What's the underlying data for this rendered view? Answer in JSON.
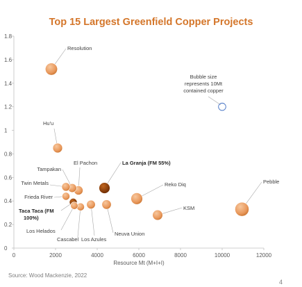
{
  "title": "Top 15 Largest Greenfield Copper Projects",
  "source": "Source: Wood Mackenzie, 2022",
  "page_number": "4",
  "colors": {
    "title": "#d4762a",
    "bubble_light": "#f7c79d",
    "bubble_mid": "#e8975a",
    "bubble_dark_edge": "#c8732e",
    "highlight_light": "#c0651e",
    "highlight_dark": "#6b2a02",
    "legend_circle": "#4472c4"
  },
  "chart_data": {
    "type": "scatter",
    "title": "Top 15 Largest Greenfield Copper Projects",
    "xlabel": "Resource Mt (M+I+I)",
    "ylabel": "",
    "xlim": [
      0,
      12000
    ],
    "ylim": [
      0,
      1.8
    ],
    "xticks": [
      0,
      2000,
      4000,
      6000,
      8000,
      10000,
      12000
    ],
    "yticks": [
      0,
      0.2,
      0.4,
      0.6,
      0.8,
      1,
      1.2,
      1.4,
      1.6,
      1.8
    ],
    "xtick_labels": [
      "0",
      "2000",
      "4000",
      "6000",
      "8000",
      "10000",
      "12000"
    ],
    "ytick_labels": [
      "0",
      "0.2",
      "0.4",
      "0.6",
      "0.8",
      "1",
      "1.2",
      "1.4",
      "1.6",
      "1.8"
    ],
    "grid": false,
    "legend": {
      "text": [
        "Bubble size",
        "represents 10Mt",
        "contained copper"
      ],
      "placement": "top-right"
    },
    "points": [
      {
        "name": "Resolution",
        "label": [
          "Resolution"
        ],
        "x": 1800,
        "y": 1.52,
        "contained_cu_mt": 27,
        "highlight": false
      },
      {
        "name": "Hu'u",
        "label": [
          "Hu'u"
        ],
        "x": 2100,
        "y": 0.85,
        "contained_cu_mt": 17,
        "highlight": false
      },
      {
        "name": "El Pachon",
        "label": [
          "El Pachon"
        ],
        "x": 3100,
        "y": 0.49,
        "contained_cu_mt": 15,
        "highlight": false
      },
      {
        "name": "Tampakan",
        "label": [
          "Tampakan"
        ],
        "x": 2800,
        "y": 0.51,
        "contained_cu_mt": 14,
        "highlight": false
      },
      {
        "name": "Twin Metals",
        "label": [
          "Twin Metals"
        ],
        "x": 2500,
        "y": 0.52,
        "contained_cu_mt": 13,
        "highlight": false
      },
      {
        "name": "Frieda River",
        "label": [
          "Frieda River"
        ],
        "x": 2500,
        "y": 0.44,
        "contained_cu_mt": 11,
        "highlight": false
      },
      {
        "name": "Taca Taca (FM 100%)",
        "label": [
          "Taca Taca (FM",
          "100%)"
        ],
        "x": 2850,
        "y": 0.39,
        "contained_cu_mt": 11,
        "highlight": true
      },
      {
        "name": "Los Helados",
        "label": [
          "Los Helados"
        ],
        "x": 2900,
        "y": 0.36,
        "contained_cu_mt": 10,
        "highlight": false
      },
      {
        "name": "Cascabel",
        "label": [
          "Cascabel"
        ],
        "x": 3200,
        "y": 0.35,
        "contained_cu_mt": 11,
        "highlight": false
      },
      {
        "name": "Los Azules",
        "label": [
          "Los Azules"
        ],
        "x": 3700,
        "y": 0.37,
        "contained_cu_mt": 14,
        "highlight": false
      },
      {
        "name": "La Granja (FM 55%)",
        "label": [
          "La Granja (FM 55%)"
        ],
        "x": 4350,
        "y": 0.51,
        "contained_cu_mt": 22,
        "highlight": true
      },
      {
        "name": "Neuva Union",
        "label": [
          "Neuva Union"
        ],
        "x": 4450,
        "y": 0.37,
        "contained_cu_mt": 16,
        "highlight": false
      },
      {
        "name": "Reko Diq",
        "label": [
          "Reko Diq"
        ],
        "x": 5900,
        "y": 0.42,
        "contained_cu_mt": 25,
        "highlight": false
      },
      {
        "name": "KSM",
        "label": [
          "KSM"
        ],
        "x": 6900,
        "y": 0.28,
        "contained_cu_mt": 19,
        "highlight": false
      },
      {
        "name": "Pebble",
        "label": [
          "Pebble"
        ],
        "x": 10950,
        "y": 0.33,
        "contained_cu_mt": 36,
        "highlight": false
      }
    ]
  }
}
